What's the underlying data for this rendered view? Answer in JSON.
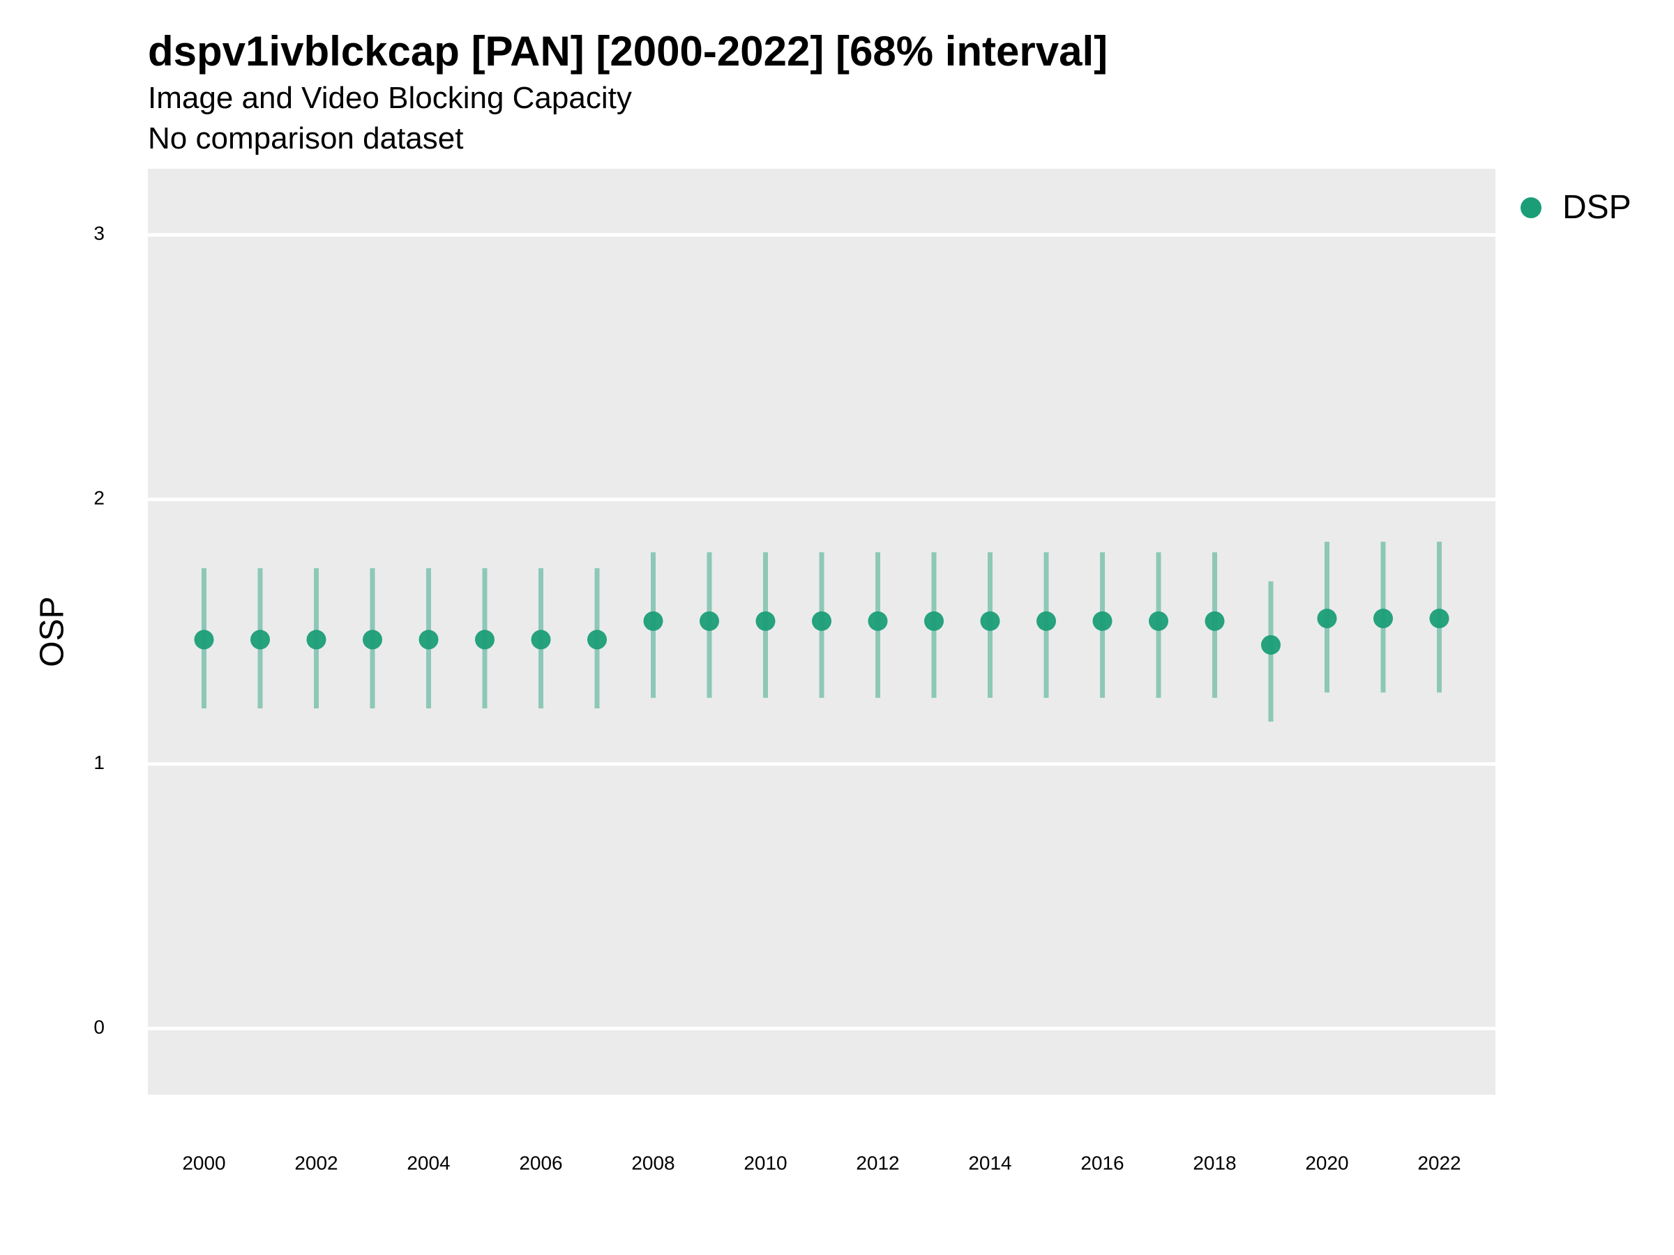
{
  "chart_data": {
    "type": "scatter",
    "title": "dspv1ivblckcap [PAN] [2000-2022] [68% interval]",
    "subtitle": "Image and Video Blocking Capacity",
    "caption": "No comparison dataset",
    "xlabel": "",
    "ylabel": "OSP",
    "xlim": [
      1999,
      2023
    ],
    "ylim": [
      -0.25,
      3.25
    ],
    "x_ticks": [
      "2000",
      "2002",
      "2004",
      "2006",
      "2008",
      "2010",
      "2012",
      "2014",
      "2016",
      "2018",
      "2020",
      "2022"
    ],
    "y_ticks": [
      "0",
      "1",
      "2",
      "3"
    ],
    "grid": true,
    "legend_position": "top-right",
    "series": [
      {
        "name": "DSP",
        "color": "#1b9e77",
        "points": [
          {
            "x": 2000,
            "y": 1.47,
            "low": 1.21,
            "high": 1.74
          },
          {
            "x": 2001,
            "y": 1.47,
            "low": 1.21,
            "high": 1.74
          },
          {
            "x": 2002,
            "y": 1.47,
            "low": 1.21,
            "high": 1.74
          },
          {
            "x": 2003,
            "y": 1.47,
            "low": 1.21,
            "high": 1.74
          },
          {
            "x": 2004,
            "y": 1.47,
            "low": 1.21,
            "high": 1.74
          },
          {
            "x": 2005,
            "y": 1.47,
            "low": 1.21,
            "high": 1.74
          },
          {
            "x": 2006,
            "y": 1.47,
            "low": 1.21,
            "high": 1.74
          },
          {
            "x": 2007,
            "y": 1.47,
            "low": 1.21,
            "high": 1.74
          },
          {
            "x": 2008,
            "y": 1.54,
            "low": 1.25,
            "high": 1.8
          },
          {
            "x": 2009,
            "y": 1.54,
            "low": 1.25,
            "high": 1.8
          },
          {
            "x": 2010,
            "y": 1.54,
            "low": 1.25,
            "high": 1.8
          },
          {
            "x": 2011,
            "y": 1.54,
            "low": 1.25,
            "high": 1.8
          },
          {
            "x": 2012,
            "y": 1.54,
            "low": 1.25,
            "high": 1.8
          },
          {
            "x": 2013,
            "y": 1.54,
            "low": 1.25,
            "high": 1.8
          },
          {
            "x": 2014,
            "y": 1.54,
            "low": 1.25,
            "high": 1.8
          },
          {
            "x": 2015,
            "y": 1.54,
            "low": 1.25,
            "high": 1.8
          },
          {
            "x": 2016,
            "y": 1.54,
            "low": 1.25,
            "high": 1.8
          },
          {
            "x": 2017,
            "y": 1.54,
            "low": 1.25,
            "high": 1.8
          },
          {
            "x": 2018,
            "y": 1.54,
            "low": 1.25,
            "high": 1.8
          },
          {
            "x": 2019,
            "y": 1.45,
            "low": 1.16,
            "high": 1.69
          },
          {
            "x": 2020,
            "y": 1.55,
            "low": 1.27,
            "high": 1.84
          },
          {
            "x": 2021,
            "y": 1.55,
            "low": 1.27,
            "high": 1.84
          },
          {
            "x": 2022,
            "y": 1.55,
            "low": 1.27,
            "high": 1.84
          }
        ]
      }
    ]
  },
  "colors": {
    "panel_background": "#ebebeb",
    "gridline": "#ffffff",
    "series_color": "#1b9e77"
  }
}
